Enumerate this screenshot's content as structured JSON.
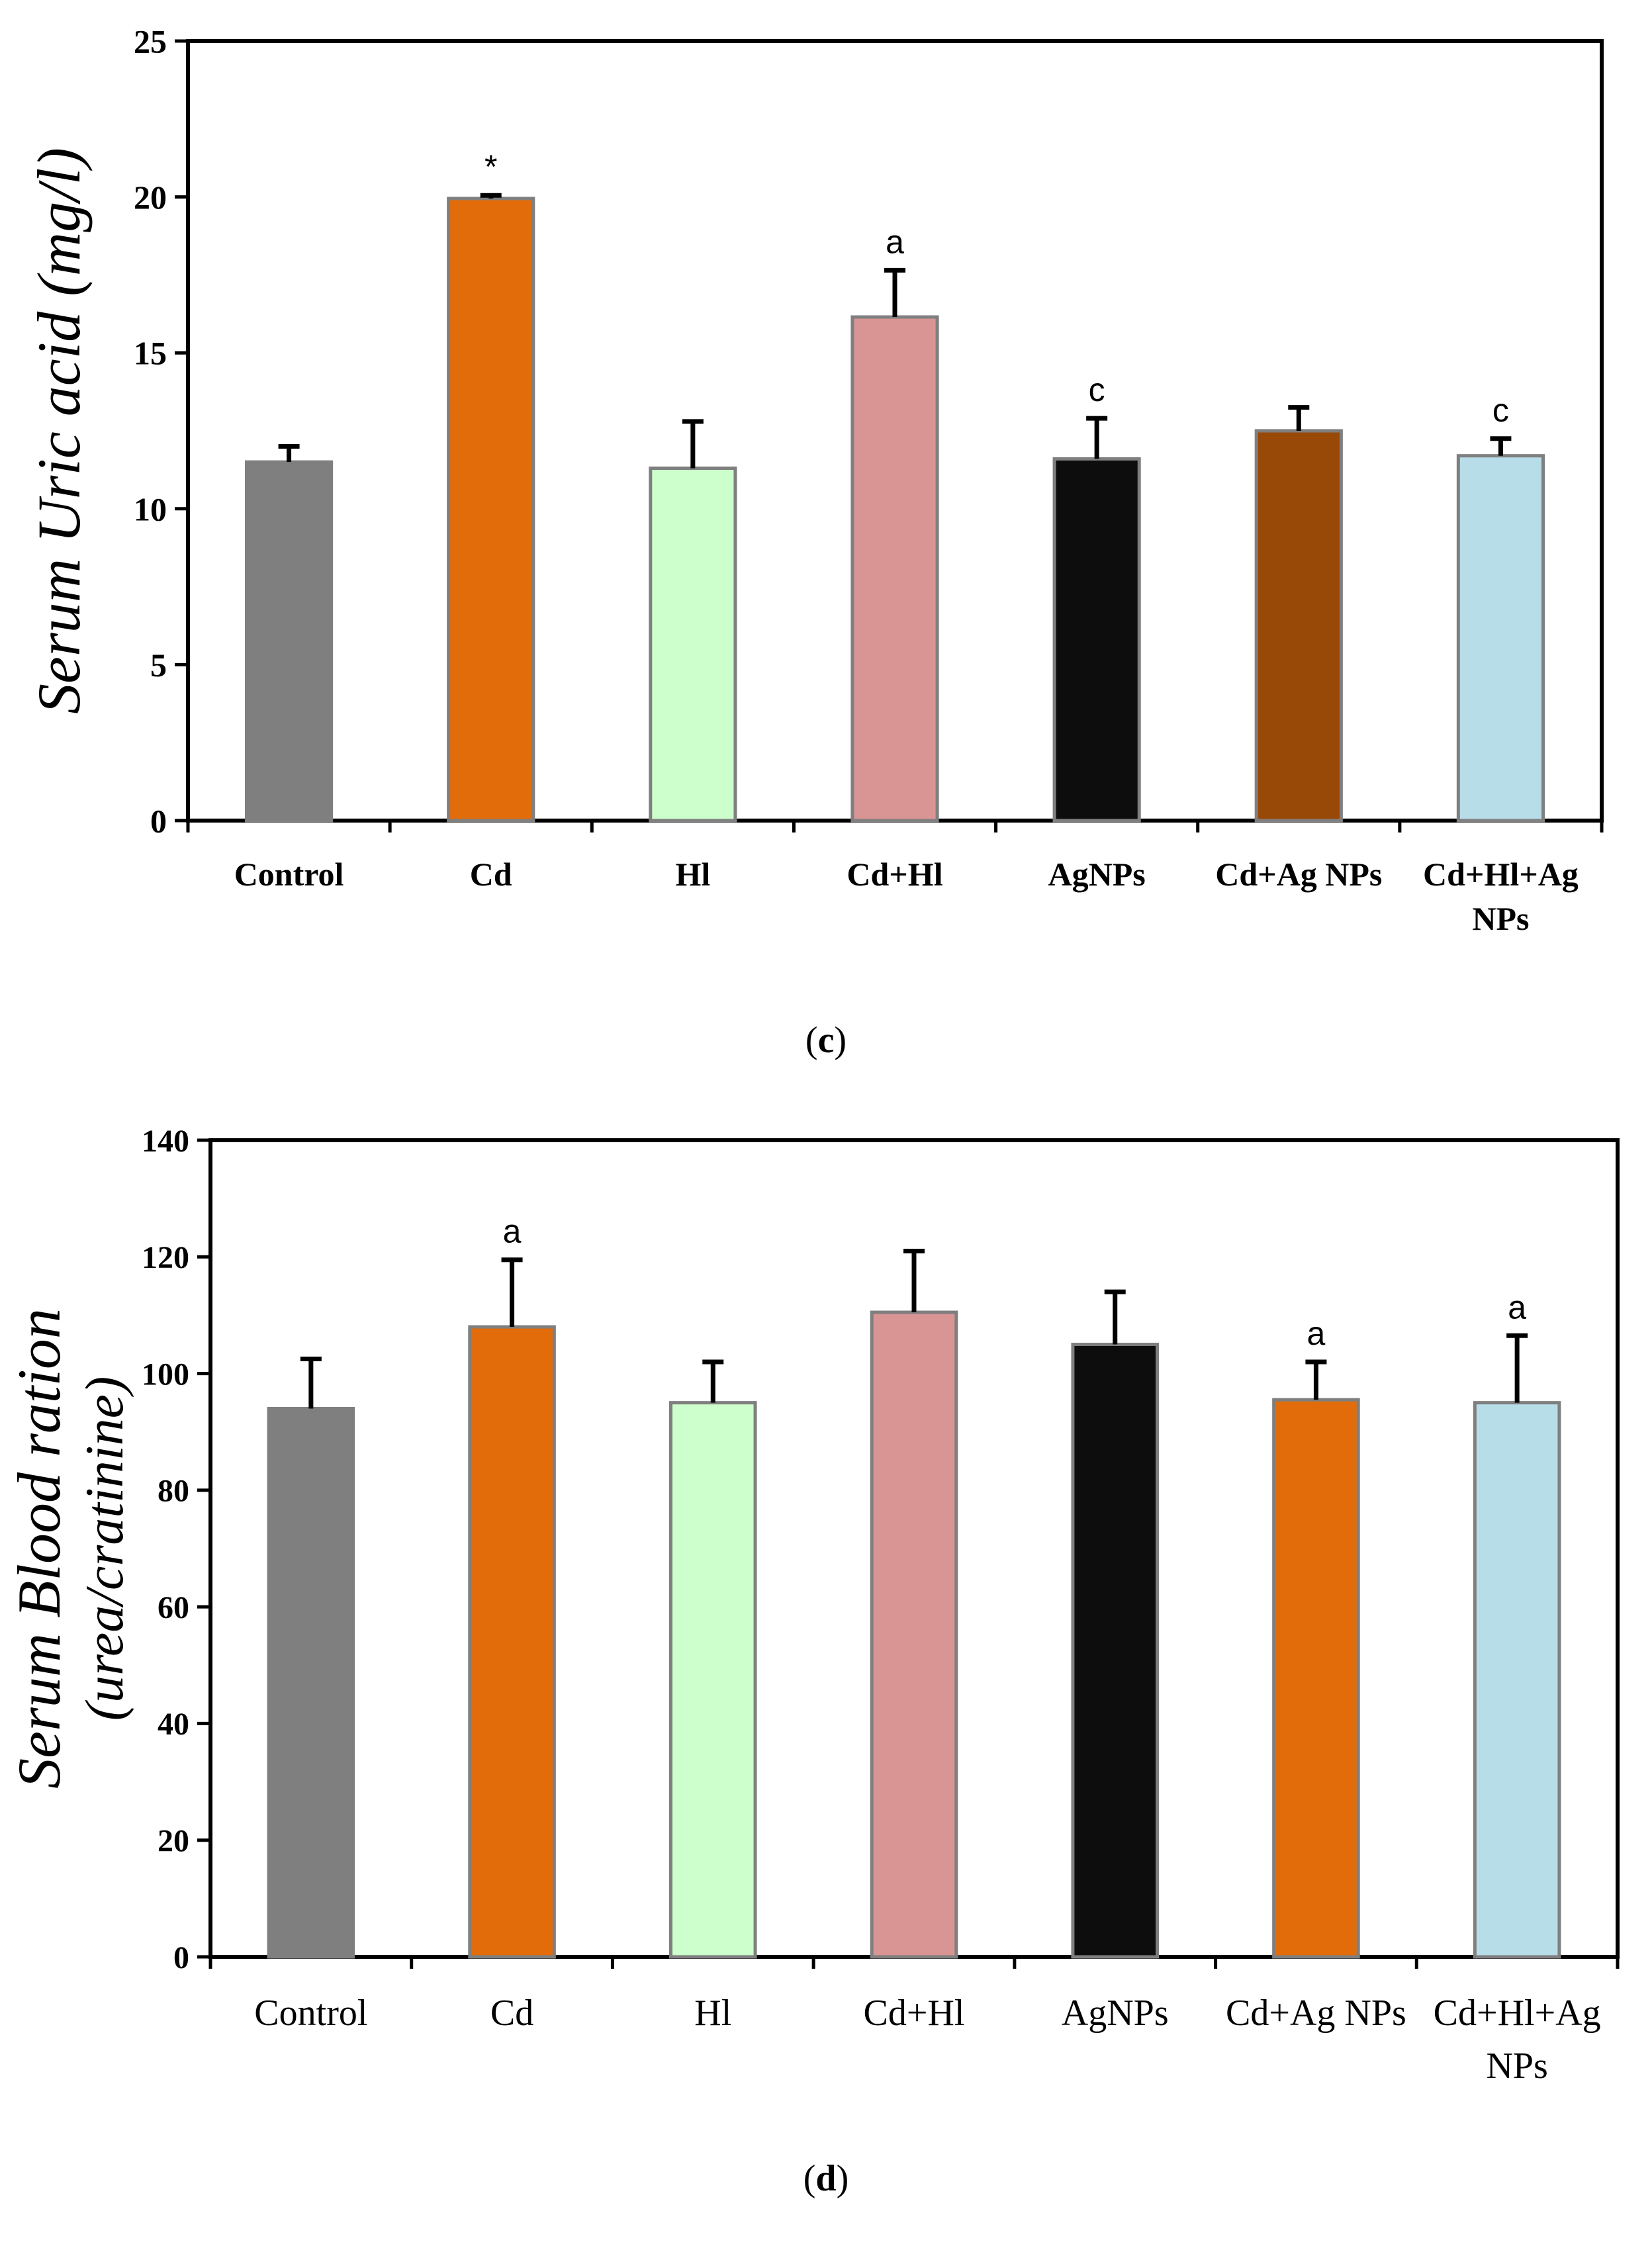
{
  "chart_data": [
    {
      "panel": "c",
      "type": "bar",
      "title": "",
      "ylabel": "Serum  Uric acid (mg/l)",
      "xlabel": "",
      "ylim": [
        0,
        25
      ],
      "yticks": [
        0,
        5,
        10,
        15,
        20,
        25
      ],
      "categories": [
        "Control",
        "Cd",
        "Hl",
        "Cd+Hl",
        "AgNPs",
        "Cd+Ag NPs",
        "Cd+Hl+Ag NPs"
      ],
      "values": [
        11.5,
        19.95,
        11.3,
        16.15,
        11.6,
        12.5,
        11.7
      ],
      "errors": [
        0.5,
        0.1,
        1.5,
        1.5,
        1.3,
        0.75,
        0.55
      ],
      "annotations": [
        "",
        "*",
        "",
        "a",
        "c",
        "",
        "c"
      ],
      "colors": [
        "#7f7f7f",
        "#e36c0a",
        "#ccffcc",
        "#d99594",
        "#0d0d0d",
        "#984807",
        "#b7dde8"
      ],
      "grid": false,
      "caption": "(c)"
    },
    {
      "panel": "d",
      "type": "bar",
      "title": "",
      "ylabel_line1": "Serum  Blood ration",
      "ylabel_line2": "(urea/cratinine)",
      "xlabel": "",
      "ylim": [
        0,
        140
      ],
      "yticks": [
        0,
        20,
        40,
        60,
        80,
        100,
        120,
        140
      ],
      "categories": [
        "Control",
        "Cd",
        "Hl",
        "Cd+Hl",
        "AgNPs",
        "Cd+Ag NPs",
        "Cd+Hl+Ag NPs"
      ],
      "values": [
        94,
        108,
        95,
        110.5,
        105,
        95.5,
        95
      ],
      "errors": [
        8.5,
        11.5,
        7,
        10.5,
        9,
        6.5,
        11.5
      ],
      "annotations": [
        "",
        "a",
        "",
        "",
        "",
        "a",
        "a"
      ],
      "colors": [
        "#7f7f7f",
        "#e36c0a",
        "#ccffcc",
        "#d99594",
        "#0d0d0d",
        "#e36c0a",
        "#b7dde8"
      ],
      "grid": false,
      "caption": "(d)"
    }
  ],
  "captions": {
    "c_open": "(",
    "c_letter": "c",
    "c_close": ")",
    "d_open": "(",
    "d_letter": "d",
    "d_close": ")"
  }
}
